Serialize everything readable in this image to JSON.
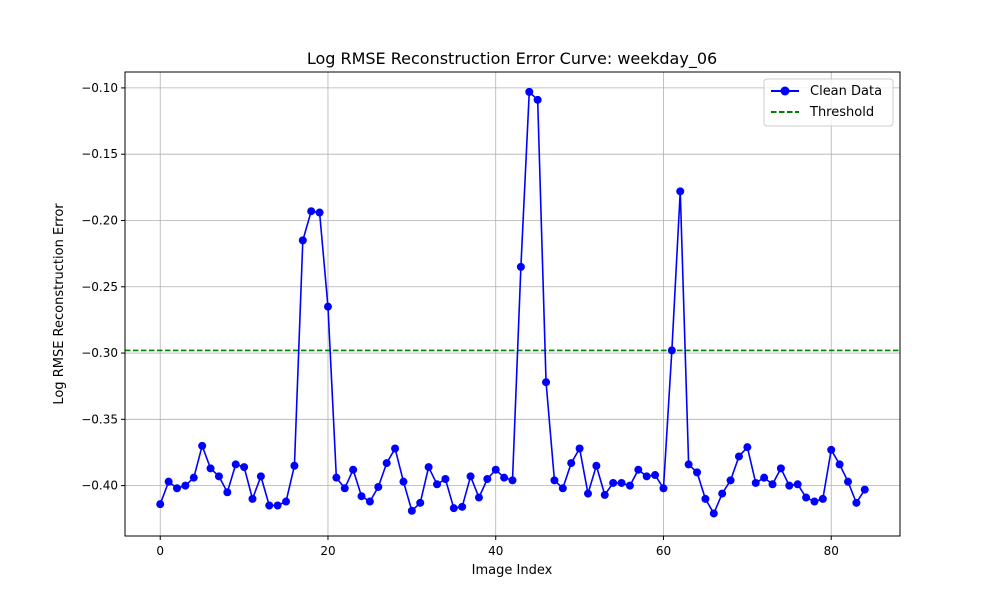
{
  "chart_data": {
    "type": "line",
    "title": "Log RMSE Reconstruction Error Curve: weekday_06",
    "xlabel": "Image Index",
    "ylabel": "Log RMSE Reconstruction Error",
    "xlim": [
      -4.2,
      88.2
    ],
    "ylim": [
      -0.438,
      -0.088
    ],
    "xticks": [
      0,
      20,
      40,
      60,
      80
    ],
    "xtick_labels": [
      "0",
      "20",
      "40",
      "60",
      "80"
    ],
    "yticks": [
      -0.1,
      -0.15,
      -0.2,
      -0.25,
      -0.3,
      -0.35,
      -0.4
    ],
    "ytick_labels": [
      "−0.10",
      "−0.15",
      "−0.20",
      "−0.25",
      "−0.30",
      "−0.35",
      "−0.40"
    ],
    "grid": true,
    "legend_position": "top-right",
    "series": [
      {
        "name": "Clean Data",
        "color": "#0000ff",
        "marker": "circle",
        "x": [
          0,
          1,
          2,
          3,
          4,
          5,
          6,
          7,
          8,
          9,
          10,
          11,
          12,
          13,
          14,
          15,
          16,
          17,
          18,
          19,
          20,
          21,
          22,
          23,
          24,
          25,
          26,
          27,
          28,
          29,
          30,
          31,
          32,
          33,
          34,
          35,
          36,
          37,
          38,
          39,
          40,
          41,
          42,
          43,
          44,
          45,
          46,
          47,
          48,
          49,
          50,
          51,
          52,
          53,
          54,
          55,
          56,
          57,
          58,
          59,
          60,
          61,
          62,
          63,
          64,
          65,
          66,
          67,
          68,
          69,
          70,
          71,
          72,
          73,
          74,
          75,
          76,
          77,
          78,
          79,
          80,
          81,
          82,
          83,
          84
        ],
        "values": [
          -0.414,
          -0.397,
          -0.402,
          -0.4,
          -0.394,
          -0.37,
          -0.387,
          -0.393,
          -0.405,
          -0.384,
          -0.386,
          -0.41,
          -0.393,
          -0.415,
          -0.415,
          -0.412,
          -0.385,
          -0.215,
          -0.193,
          -0.194,
          -0.265,
          -0.394,
          -0.402,
          -0.388,
          -0.408,
          -0.412,
          -0.401,
          -0.383,
          -0.372,
          -0.397,
          -0.419,
          -0.413,
          -0.386,
          -0.399,
          -0.395,
          -0.417,
          -0.416,
          -0.393,
          -0.409,
          -0.395,
          -0.388,
          -0.394,
          -0.396,
          -0.235,
          -0.103,
          -0.109,
          -0.322,
          -0.396,
          -0.402,
          -0.383,
          -0.372,
          -0.406,
          -0.385,
          -0.407,
          -0.398,
          -0.398,
          -0.4,
          -0.388,
          -0.393,
          -0.392,
          -0.402,
          -0.298,
          -0.178,
          -0.384,
          -0.39,
          -0.41,
          -0.421,
          -0.406,
          -0.396,
          -0.378,
          -0.371,
          -0.398,
          -0.394,
          -0.399,
          -0.387,
          -0.4,
          -0.399,
          -0.409,
          -0.412,
          -0.41,
          -0.373,
          -0.384,
          -0.397,
          -0.413,
          -0.403
        ]
      },
      {
        "name": "Threshold",
        "color": "#008000",
        "style": "dashed",
        "value": -0.298
      }
    ]
  }
}
